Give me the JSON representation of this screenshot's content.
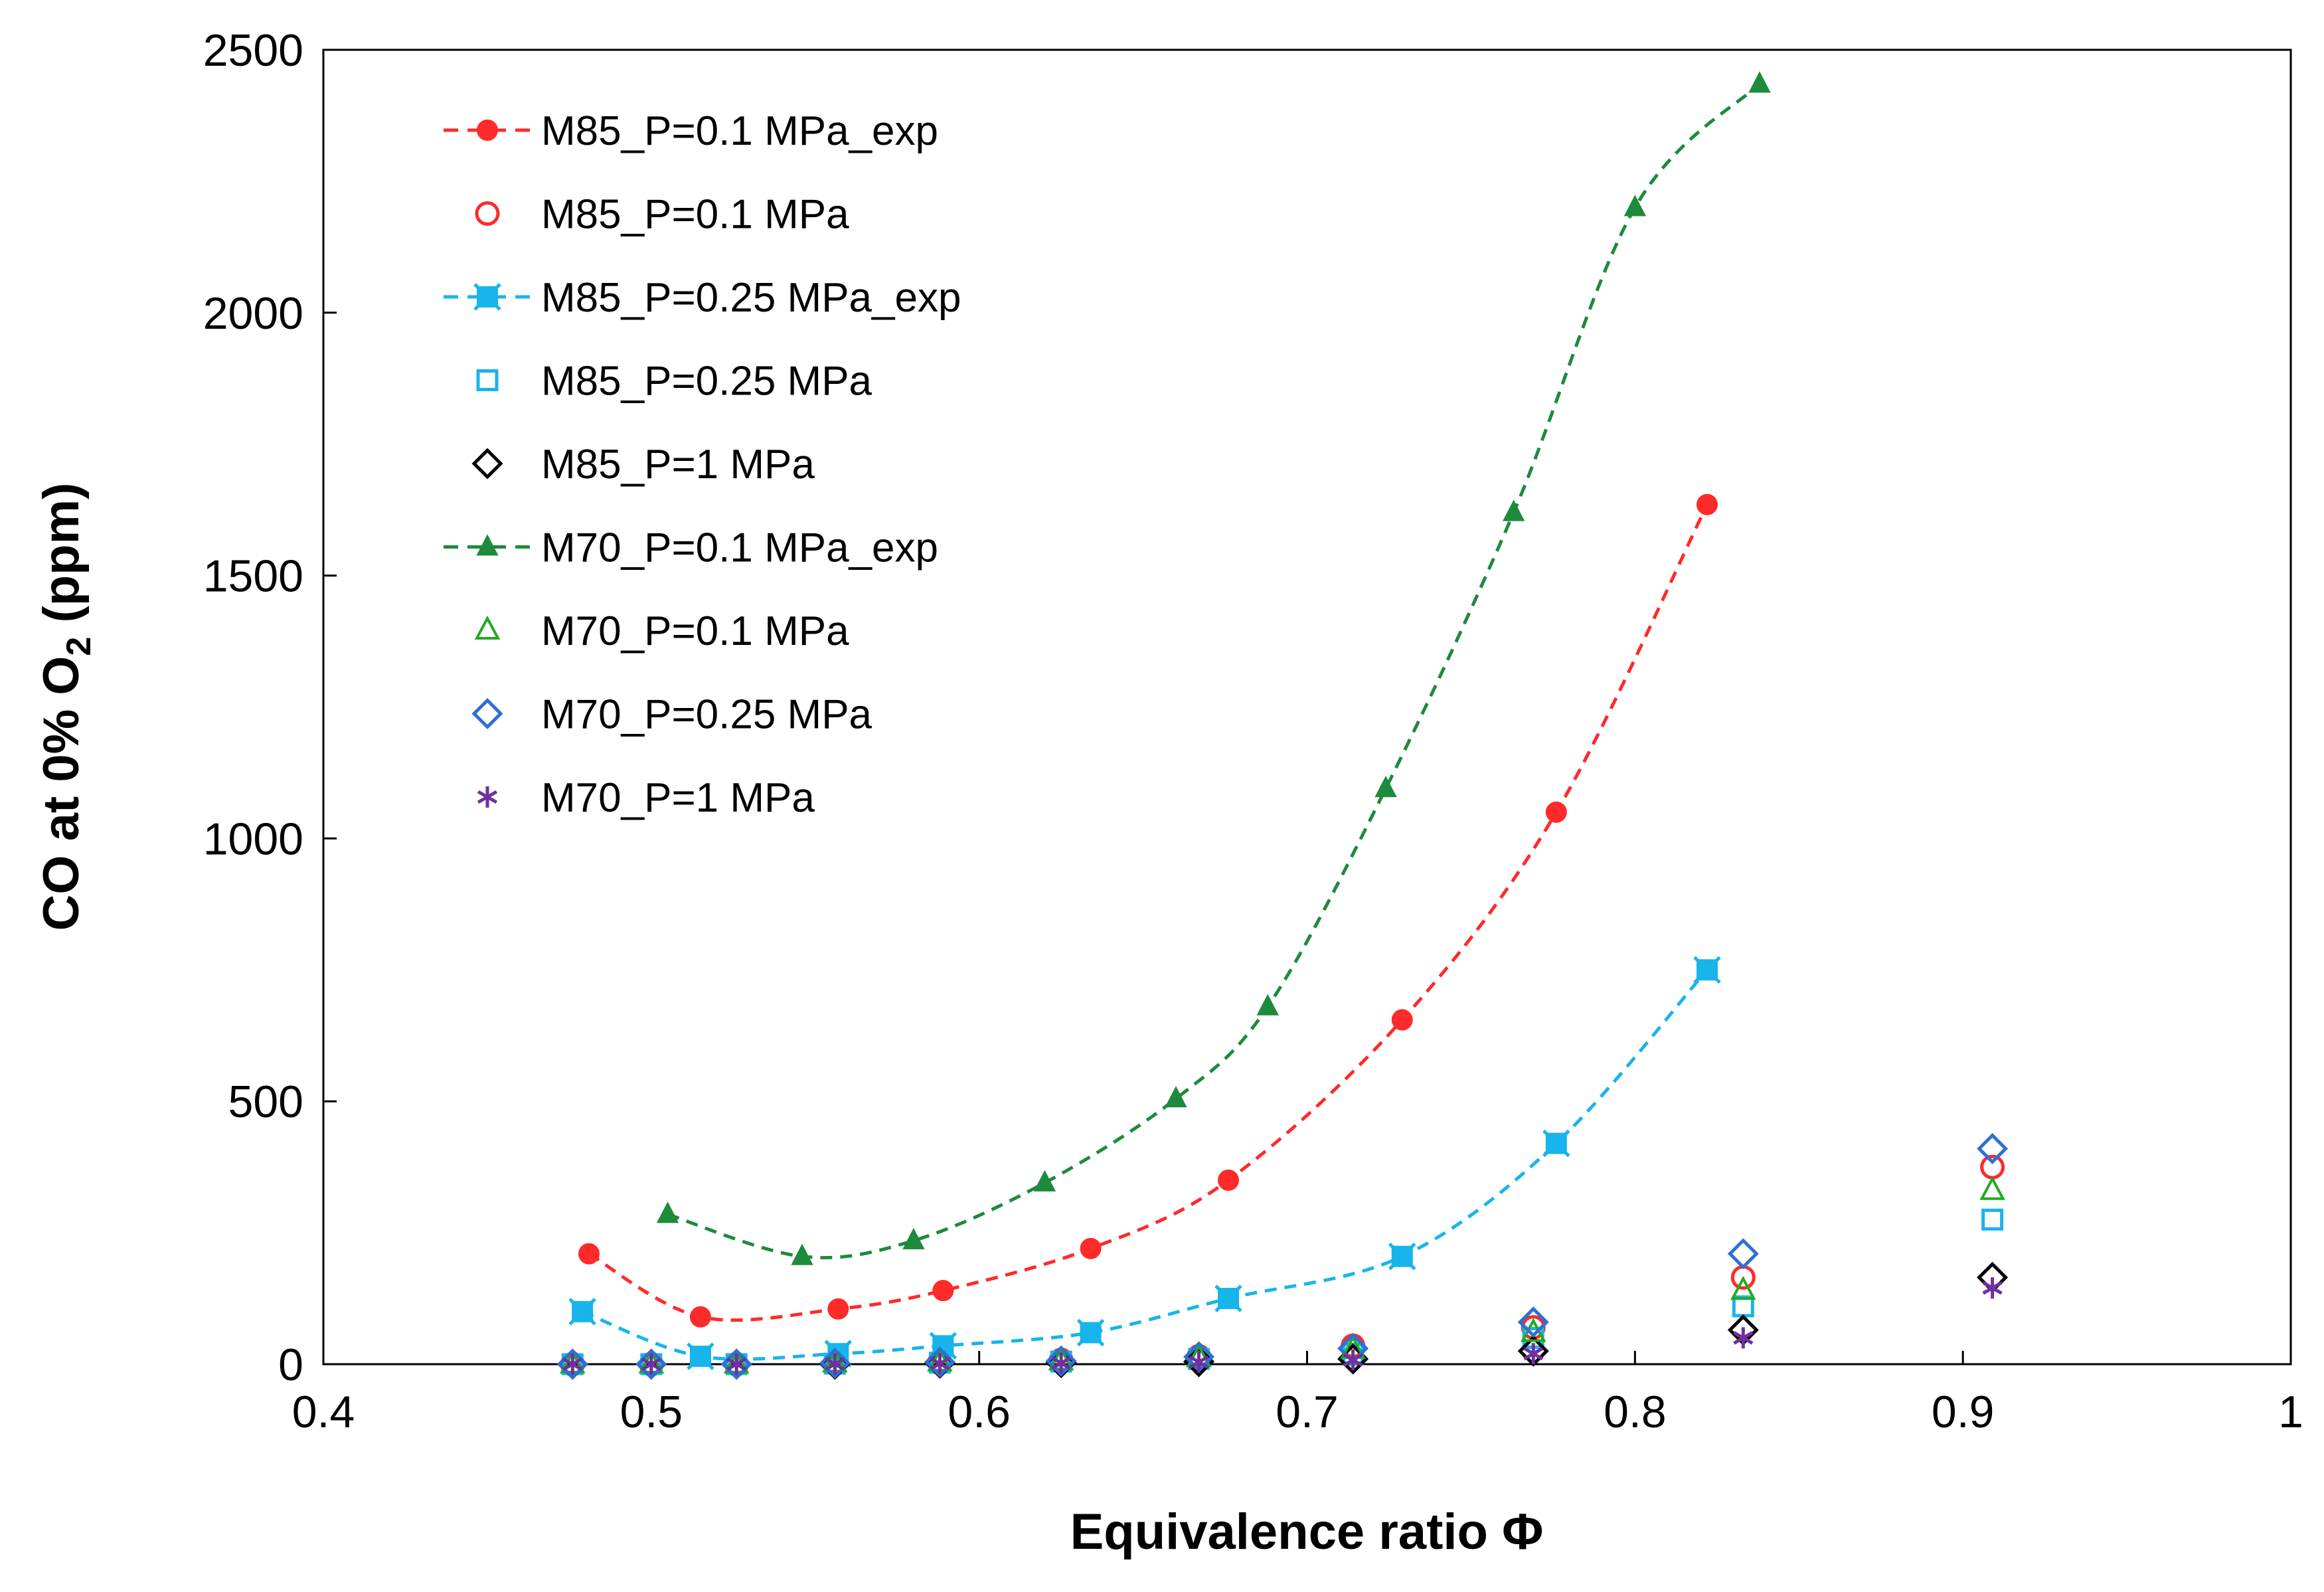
{
  "chart_data": {
    "type": "scatter",
    "title": "",
    "xlabel": "Equivalence ratio Φ",
    "ylabel_parts": [
      "CO at 0% O",
      "2",
      " (ppm)"
    ],
    "xlim": [
      0.4,
      1.0
    ],
    "ylim": [
      0,
      2500
    ],
    "xticks": [
      0.4,
      0.5,
      0.6,
      0.7,
      0.8,
      0.9,
      1.0
    ],
    "xtick_labels": [
      "0.4",
      "0.5",
      "0.6",
      "0.7",
      "0.8",
      "0.9",
      "1"
    ],
    "yticks": [
      0,
      500,
      1000,
      1500,
      2000,
      2500
    ],
    "ytick_labels": [
      "0",
      "500",
      "1000",
      "1500",
      "2000",
      "2500"
    ],
    "grid": false,
    "legend_position": "top-left",
    "series": [
      {
        "name": "M85_P=0.1 MPa_exp",
        "color": "#ff2a2a",
        "marker": "filled-circle",
        "line": "dashed",
        "x": [
          0.481,
          0.515,
          0.557,
          0.589,
          0.634,
          0.676,
          0.729,
          0.776,
          0.822
        ],
        "y": [
          210,
          90,
          105,
          140,
          220,
          350,
          655,
          1050,
          1635
        ]
      },
      {
        "name": "M85_P=0.1 MPa",
        "color": "#ff2a2a",
        "marker": "open-circle",
        "line": "none",
        "x": [
          0.476,
          0.5,
          0.526,
          0.556,
          0.588,
          0.625,
          0.667,
          0.714,
          0.769,
          0.833,
          0.909
        ],
        "y": [
          0,
          0,
          0,
          2,
          5,
          8,
          15,
          35,
          70,
          165,
          375
        ]
      },
      {
        "name": "M85_P=0.25 MPa_exp",
        "color": "#18b4ec",
        "marker": "filled-square",
        "line": "dashed",
        "x": [
          0.479,
          0.515,
          0.557,
          0.589,
          0.634,
          0.676,
          0.729,
          0.776,
          0.822
        ],
        "y": [
          100,
          15,
          20,
          35,
          60,
          125,
          205,
          420,
          750
        ]
      },
      {
        "name": "M85_P=0.25 MPa",
        "color": "#18b4ec",
        "marker": "open-square",
        "line": "none",
        "x": [
          0.476,
          0.5,
          0.526,
          0.556,
          0.588,
          0.625,
          0.667,
          0.714,
          0.769,
          0.833,
          0.909
        ],
        "y": [
          0,
          0,
          0,
          1,
          3,
          5,
          10,
          20,
          50,
          110,
          275
        ]
      },
      {
        "name": "M85_P=1 MPa",
        "color": "#000000",
        "marker": "open-diamond",
        "line": "none",
        "x": [
          0.476,
          0.5,
          0.526,
          0.556,
          0.588,
          0.625,
          0.667,
          0.714,
          0.769,
          0.833,
          0.909
        ],
        "y": [
          0,
          0,
          0,
          0,
          2,
          3,
          5,
          10,
          25,
          65,
          165
        ]
      },
      {
        "name": "M70_P=0.1 MPa_exp",
        "color": "#1e8a3c",
        "marker": "filled-triangle",
        "line": "dashed",
        "x": [
          0.505,
          0.546,
          0.58,
          0.62,
          0.66,
          0.688,
          0.724,
          0.763,
          0.8,
          0.838
        ],
        "y": [
          285,
          205,
          235,
          345,
          505,
          680,
          1095,
          1620,
          2200,
          2435
        ]
      },
      {
        "name": "M70_P=0.1 MPa",
        "color": "#22aa22",
        "marker": "open-triangle",
        "line": "none",
        "x": [
          0.476,
          0.5,
          0.526,
          0.556,
          0.588,
          0.625,
          0.667,
          0.714,
          0.769,
          0.833,
          0.909
        ],
        "y": [
          0,
          0,
          0,
          2,
          4,
          6,
          12,
          28,
          60,
          140,
          330
        ]
      },
      {
        "name": "M70_P=0.25 MPa",
        "color": "#2f6fd6",
        "marker": "open-diamond",
        "line": "none",
        "x": [
          0.476,
          0.5,
          0.526,
          0.556,
          0.588,
          0.625,
          0.667,
          0.714,
          0.769,
          0.833,
          0.909
        ],
        "y": [
          0,
          0,
          0,
          2,
          4,
          6,
          14,
          30,
          80,
          210,
          410
        ]
      },
      {
        "name": "M70_P=1 MPa",
        "color": "#7030a0",
        "marker": "star",
        "line": "none",
        "x": [
          0.476,
          0.5,
          0.526,
          0.556,
          0.588,
          0.625,
          0.667,
          0.714,
          0.769,
          0.833,
          0.909
        ],
        "y": [
          0,
          0,
          0,
          0,
          1,
          2,
          4,
          8,
          20,
          50,
          145
        ]
      }
    ]
  }
}
